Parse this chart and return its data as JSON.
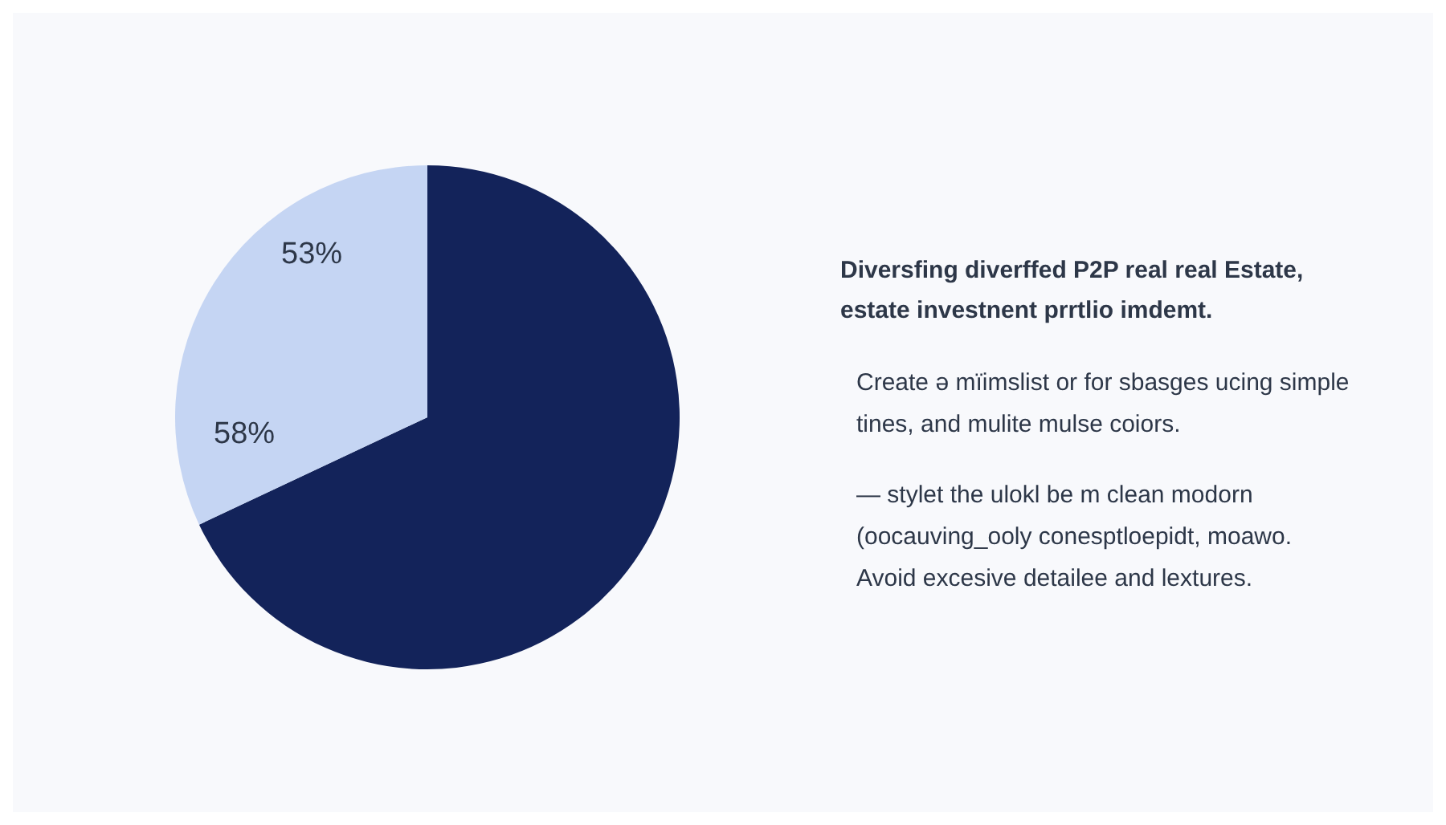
{
  "chart_data": {
    "type": "pie",
    "title": "Diversfing diverffed P2P real real Estate, estate investnent prrtlio imdemt.",
    "categories": [
      null,
      null
    ],
    "values": [
      68,
      32
    ],
    "colors": [
      "#13235a",
      "#c5d5f3"
    ],
    "legend": false,
    "annotations": [
      "53%",
      "58%",
      "Create ə mïimslist or for sbasges ucing simple tines, and mulite mulse coiors.",
      "— stylet the ulokl be m clean modorn (oocauving_ooly conesptloepidt, moawo. Avoid excesive detailee and lextures."
    ]
  }
}
